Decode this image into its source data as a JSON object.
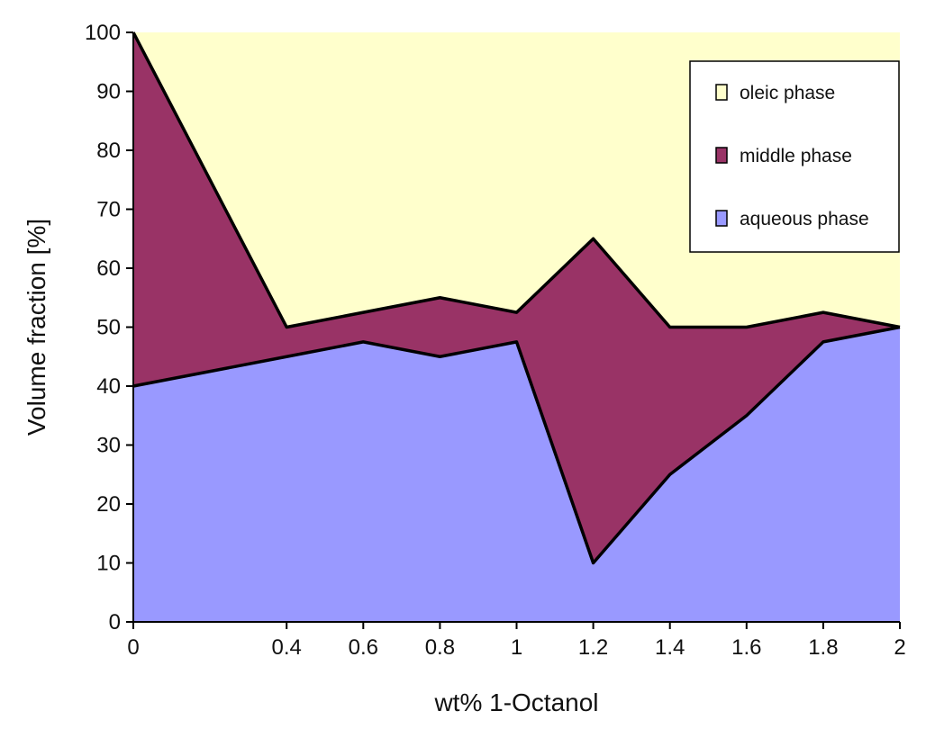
{
  "chart_data": {
    "type": "area",
    "stacked": true,
    "x": [
      "0",
      "0.4",
      "0.6",
      "0.8",
      "1",
      "1.2",
      "1.4",
      "1.6",
      "1.8",
      "2"
    ],
    "series": [
      {
        "name": "aqueous phase",
        "values": [
          40,
          45,
          47.5,
          45,
          47.5,
          10,
          25,
          35,
          47.5,
          50
        ],
        "color": "#9999ff"
      },
      {
        "name": "middle phase",
        "values": [
          60,
          5,
          5,
          10,
          5,
          55,
          25,
          15,
          5,
          0
        ],
        "color": "#993366"
      },
      {
        "name": "oleic phase",
        "values": [
          0,
          50,
          47.5,
          45,
          47.5,
          35,
          50,
          50,
          47.5,
          50
        ],
        "color": "#ffffcc"
      }
    ],
    "legend_order": [
      "oleic phase",
      "middle phase",
      "aqueous phase"
    ],
    "xlabel": "wt% 1-Octanol",
    "ylabel": "Volume fraction [%]",
    "ylim": [
      0,
      100
    ],
    "yticks": [
      "0",
      "10",
      "20",
      "30",
      "40",
      "50",
      "60",
      "70",
      "80",
      "90",
      "100"
    ],
    "grid": false,
    "legend_position": "top-right",
    "boundary_color": "#000000"
  }
}
